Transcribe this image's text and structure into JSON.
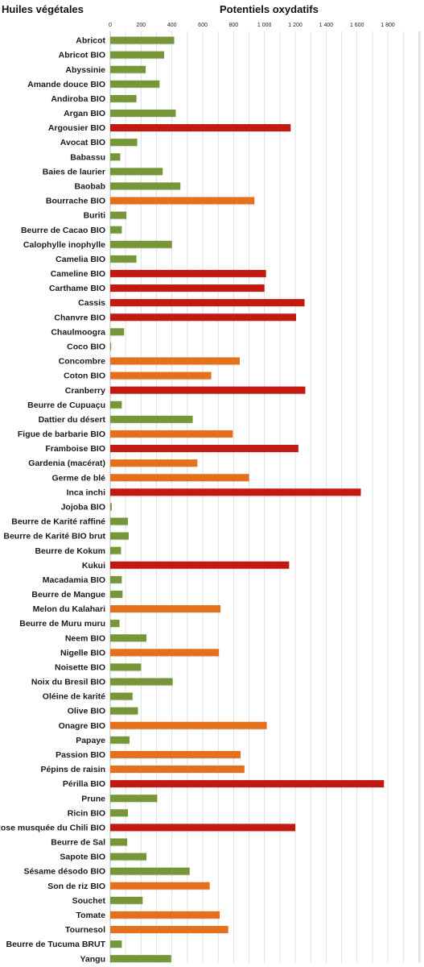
{
  "header": {
    "left_title": "Huiles végétales",
    "right_title": "Potentiels oxydatifs"
  },
  "colors": {
    "green": "#77963a",
    "orange": "#e4701c",
    "red": "#c21a10",
    "grid": "#d9d9d9"
  },
  "chart_data": {
    "type": "bar",
    "orientation": "horizontal",
    "title": "Potentiels oxydatifs",
    "xlabel": "",
    "ylabel": "Huiles végétales",
    "xlim": [
      0,
      1950
    ],
    "xticks": [
      0,
      200,
      400,
      600,
      800,
      1000,
      1200,
      1400,
      1600,
      1800
    ],
    "xtick_labels": [
      "0",
      "200",
      "400",
      "600",
      "800",
      "1 000",
      "1 200",
      "1 400",
      "1 600",
      "1 800"
    ],
    "grid": true,
    "axis_position": "top",
    "categories": [
      "Abricot",
      "Abricot BIO",
      "Abyssinie",
      "Amande douce BIO",
      "Andiroba BIO",
      "Argan BIO",
      "Argousier BIO",
      "Avocat BIO",
      "Babassu",
      "Baies de laurier",
      "Baobab",
      "Bourrache BIO",
      "Buriti",
      "Beurre de Cacao BIO",
      "Calophylle inophylle",
      "Camelia BIO",
      "Cameline BIO",
      "Carthame BIO",
      "Cassis",
      "Chanvre BIO",
      "Chaulmoogra",
      "Coco BIO",
      "Concombre",
      "Coton BIO",
      "Cranberry",
      "Beurre de Cupuaçu",
      "Dattier du désert",
      "Figue de barbarie BIO",
      "Framboise BIO",
      "Gardenia (macérat)",
      "Germe de blé",
      "Inca inchi",
      "Jojoba BIO",
      "Beurre de Karité raffiné",
      "Beurre de Karité BIO brut",
      "Beurre de Kokum",
      "Kukui",
      "Macadamia BIO",
      "Beurre de Mangue",
      "Melon du Kalahari",
      "Beurre de Muru muru",
      "Neem BIO",
      "Nigelle BIO",
      "Noisette BIO",
      "Noix du Bresil BIO",
      "Oléine de karité",
      "Olive BIO",
      "Onagre BIO",
      "Papaye",
      "Passion BIO",
      "Pépins de raisin",
      "Périlla BIO",
      "Prune",
      "Ricin BIO",
      "Rose musquée du Chili BIO",
      "Beurre de Sal",
      "Sapote BIO",
      "Sésame désodo BIO",
      "Son de riz BIO",
      "Souchet",
      "Tomate",
      "Tournesol",
      "Beurre de Tucuma BRUT",
      "Yangu"
    ],
    "values": [
      415,
      350,
      230,
      320,
      170,
      425,
      1170,
      175,
      65,
      340,
      455,
      935,
      105,
      75,
      400,
      170,
      1010,
      1000,
      1260,
      1205,
      90,
      5,
      840,
      655,
      1265,
      75,
      535,
      795,
      1220,
      565,
      900,
      1625,
      10,
      115,
      120,
      70,
      1160,
      75,
      80,
      715,
      60,
      235,
      705,
      200,
      405,
      145,
      180,
      1015,
      125,
      845,
      870,
      1775,
      305,
      115,
      1200,
      110,
      235,
      515,
      645,
      210,
      710,
      765,
      75,
      395
    ],
    "colors": [
      "green",
      "green",
      "green",
      "green",
      "green",
      "green",
      "red",
      "green",
      "green",
      "green",
      "green",
      "orange",
      "green",
      "green",
      "green",
      "green",
      "red",
      "red",
      "red",
      "red",
      "green",
      "green",
      "orange",
      "orange",
      "red",
      "green",
      "green",
      "orange",
      "red",
      "orange",
      "orange",
      "red",
      "green",
      "green",
      "green",
      "green",
      "red",
      "green",
      "green",
      "orange",
      "green",
      "green",
      "orange",
      "green",
      "green",
      "green",
      "green",
      "orange",
      "green",
      "orange",
      "orange",
      "red",
      "green",
      "green",
      "red",
      "green",
      "green",
      "green",
      "orange",
      "green",
      "orange",
      "orange",
      "green",
      "green"
    ]
  }
}
